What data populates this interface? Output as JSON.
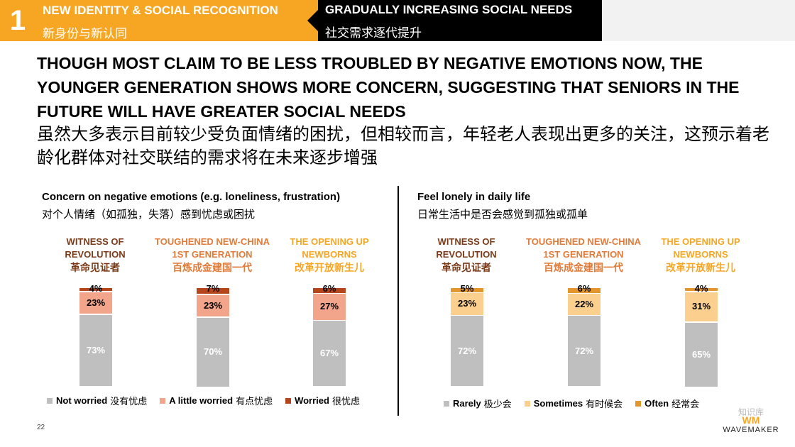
{
  "header": {
    "number": "1",
    "section1_en": "NEW IDENTITY & SOCIAL RECOGNITION",
    "section1_zh": "新身份与新认同",
    "section2_en": "GRADUALLY INCREASING SOCIAL NEEDS",
    "section2_zh": "社交需求逐代提升"
  },
  "headline": {
    "en": "THOUGH MOST CLAIM TO BE LESS TROUBLED BY NEGATIVE EMOTIONS NOW, THE YOUNGER GENERATION SHOWS MORE CONCERN, SUGGESTING THAT SENIORS IN THE FUTURE WILL HAVE GREATER SOCIAL NEEDS",
    "zh": "虽然大多表示目前较少受负面情绪的困扰，但相较而言，年轻老人表现出更多的关注，这预示着老龄化群体对社交联结的需求将在未来逐步增强"
  },
  "groups": [
    {
      "en1": "WITNESS OF",
      "en2": "REVOLUTION",
      "zh": "革命见证者"
    },
    {
      "en1": "TOUGHENED NEW-CHINA",
      "en2": "1ST GENERATION",
      "zh": "百炼成金建国一代"
    },
    {
      "en1": "THE OPENING UP",
      "en2": "NEWBORNS",
      "zh": "改革开放新生儿"
    }
  ],
  "colors": {
    "accent": "#f6a623",
    "group1": "#7a3a18",
    "group2": "#e07b39",
    "group3": "#f6a623",
    "grey": "#bfbfbf",
    "left_mid": "#f2a58a",
    "left_top": "#b5451b",
    "right_mid": "#fbd08f",
    "right_top": "#e3962b"
  },
  "chart_data": [
    {
      "type": "bar",
      "stacked": true,
      "title": "Concern on negative emotions (e.g. loneliness, frustration)",
      "subtitle": "对个人情绪（如孤独，失落）感到忧虑或困扰",
      "categories": [
        "WITNESS OF REVOLUTION 革命见证者",
        "TOUGHENED NEW-CHINA 1ST GENERATION 百炼成金建国一代",
        "THE OPENING UP NEWBORNS 改革开放新生儿"
      ],
      "series": [
        {
          "name": "Not worried 没有忧虑",
          "values": [
            73,
            70,
            67
          ],
          "color": "#bfbfbf"
        },
        {
          "name": "A little worried 有点忧虑",
          "values": [
            23,
            23,
            27
          ],
          "color": "#f2a58a"
        },
        {
          "name": "Worried 很忧虑",
          "values": [
            4,
            7,
            6
          ],
          "color": "#b5451b"
        }
      ],
      "legend_en": [
        "Not worried",
        "A little worried",
        "Worried"
      ],
      "legend_zh": [
        "没有忧虑",
        "有点忧虑",
        "很忧虑"
      ],
      "legend_position": "bottom",
      "ylim": [
        0,
        100
      ]
    },
    {
      "type": "bar",
      "stacked": true,
      "title": "Feel lonely in daily life",
      "subtitle": "日常生活中是否会感觉到孤独或孤单",
      "categories": [
        "WITNESS OF REVOLUTION 革命见证者",
        "TOUGHENED NEW-CHINA 1ST GENERATION 百炼成金建国一代",
        "THE OPENING UP NEWBORNS 改革开放新生儿"
      ],
      "series": [
        {
          "name": "Rarely 极少会",
          "values": [
            72,
            72,
            65
          ],
          "color": "#bfbfbf"
        },
        {
          "name": "Sometimes 有时候会",
          "values": [
            23,
            22,
            31
          ],
          "color": "#fbd08f"
        },
        {
          "name": "Often 经常会",
          "values": [
            5,
            6,
            4
          ],
          "color": "#e3962b"
        }
      ],
      "legend_en": [
        "Rarely",
        "Sometimes",
        "Often"
      ],
      "legend_zh": [
        "极少会",
        "有时候会",
        "经常会"
      ],
      "legend_position": "bottom",
      "ylim": [
        0,
        100
      ]
    }
  ],
  "footer": {
    "page": "22",
    "logo": "WAVEMAKER",
    "watermark": "知识库"
  }
}
